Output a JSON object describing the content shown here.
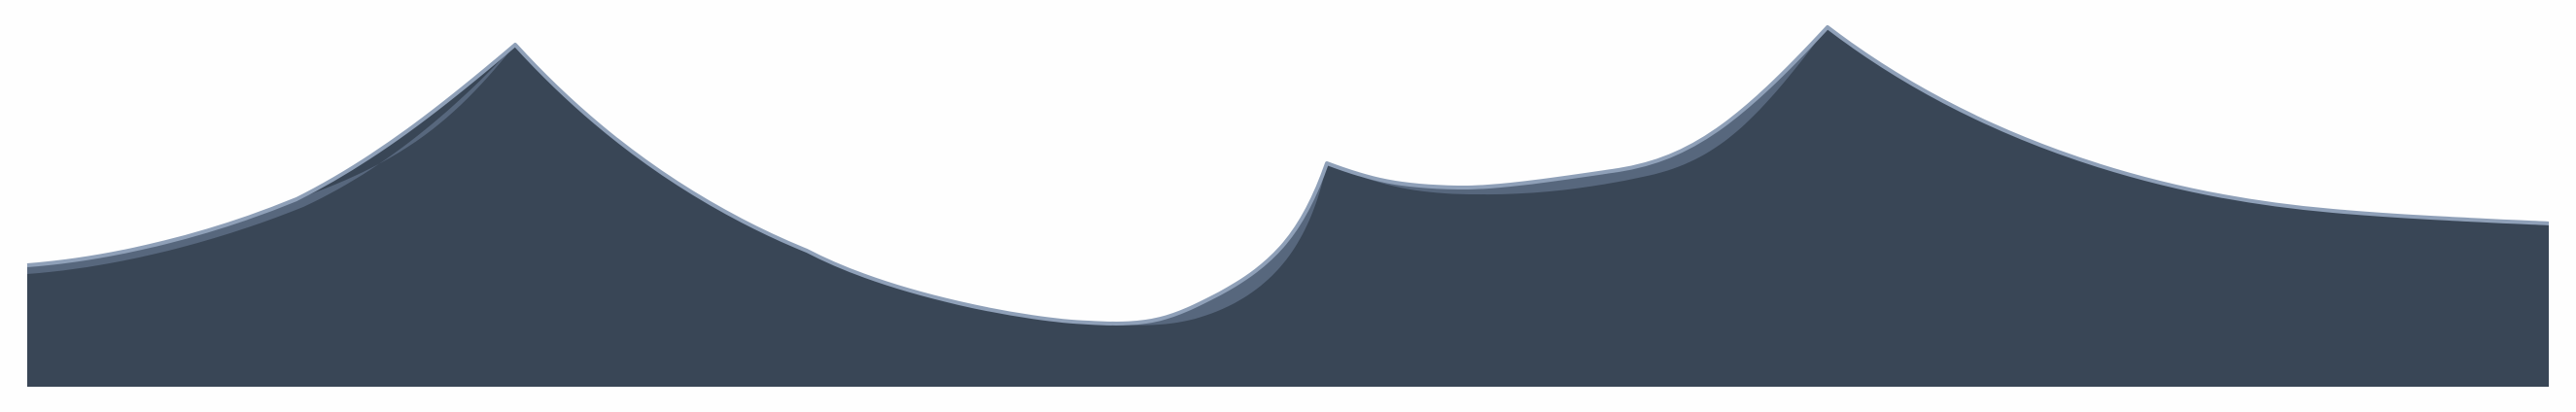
{
  "scene": {
    "background_color": "#fefefe",
    "fill_color": "#394656",
    "inner_ridge_color": "#5b6a82",
    "edge_highlight_color": "#8fa0b8"
  }
}
